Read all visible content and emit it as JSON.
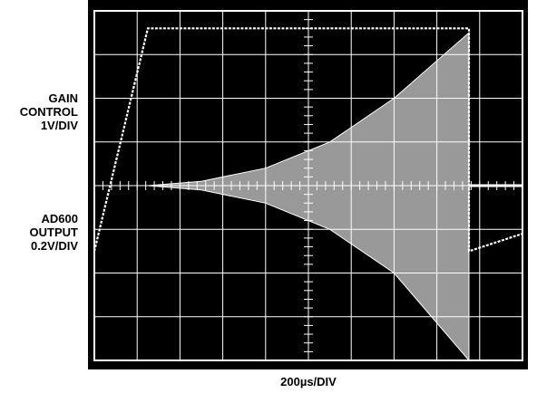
{
  "labels": {
    "gain_control": [
      "GAIN",
      "CONTROL",
      "1V/DIV"
    ],
    "ad600_output": [
      "AD600",
      "OUTPUT",
      "0.2V/DIV"
    ],
    "time_base": "200µs/DIV"
  },
  "colors": {
    "screen": "#000000",
    "trace": "#ffffff",
    "graticule": "#ffffff",
    "background": "#ffffff",
    "text": "#000000"
  },
  "chart_data": {
    "type": "line",
    "title": "",
    "xlabel": "200µs/DIV",
    "divisions": {
      "x": 10,
      "y": 8
    },
    "xlim": [
      0,
      10
    ],
    "ylim": [
      0,
      8
    ],
    "grid": true,
    "series": [
      {
        "name": "GAIN CONTROL",
        "x": [
          0,
          1.25,
          8.75,
          8.75,
          10
        ],
        "y": [
          2.5,
          7.6,
          7.6,
          2.5,
          2.9
        ],
        "note_units": "divisions"
      },
      {
        "name": "AD600 OUTPUT",
        "x": [
          1.25,
          2.5,
          4.0,
          5.5,
          7.0,
          8.75,
          8.75,
          10
        ],
        "y_upper": [
          4.0,
          4.1,
          4.4,
          5.0,
          6.0,
          7.5,
          4.0,
          4.0
        ],
        "y_lower": [
          4.0,
          3.9,
          3.6,
          3.0,
          2.0,
          0.0,
          4.0,
          4.0
        ]
      }
    ]
  }
}
